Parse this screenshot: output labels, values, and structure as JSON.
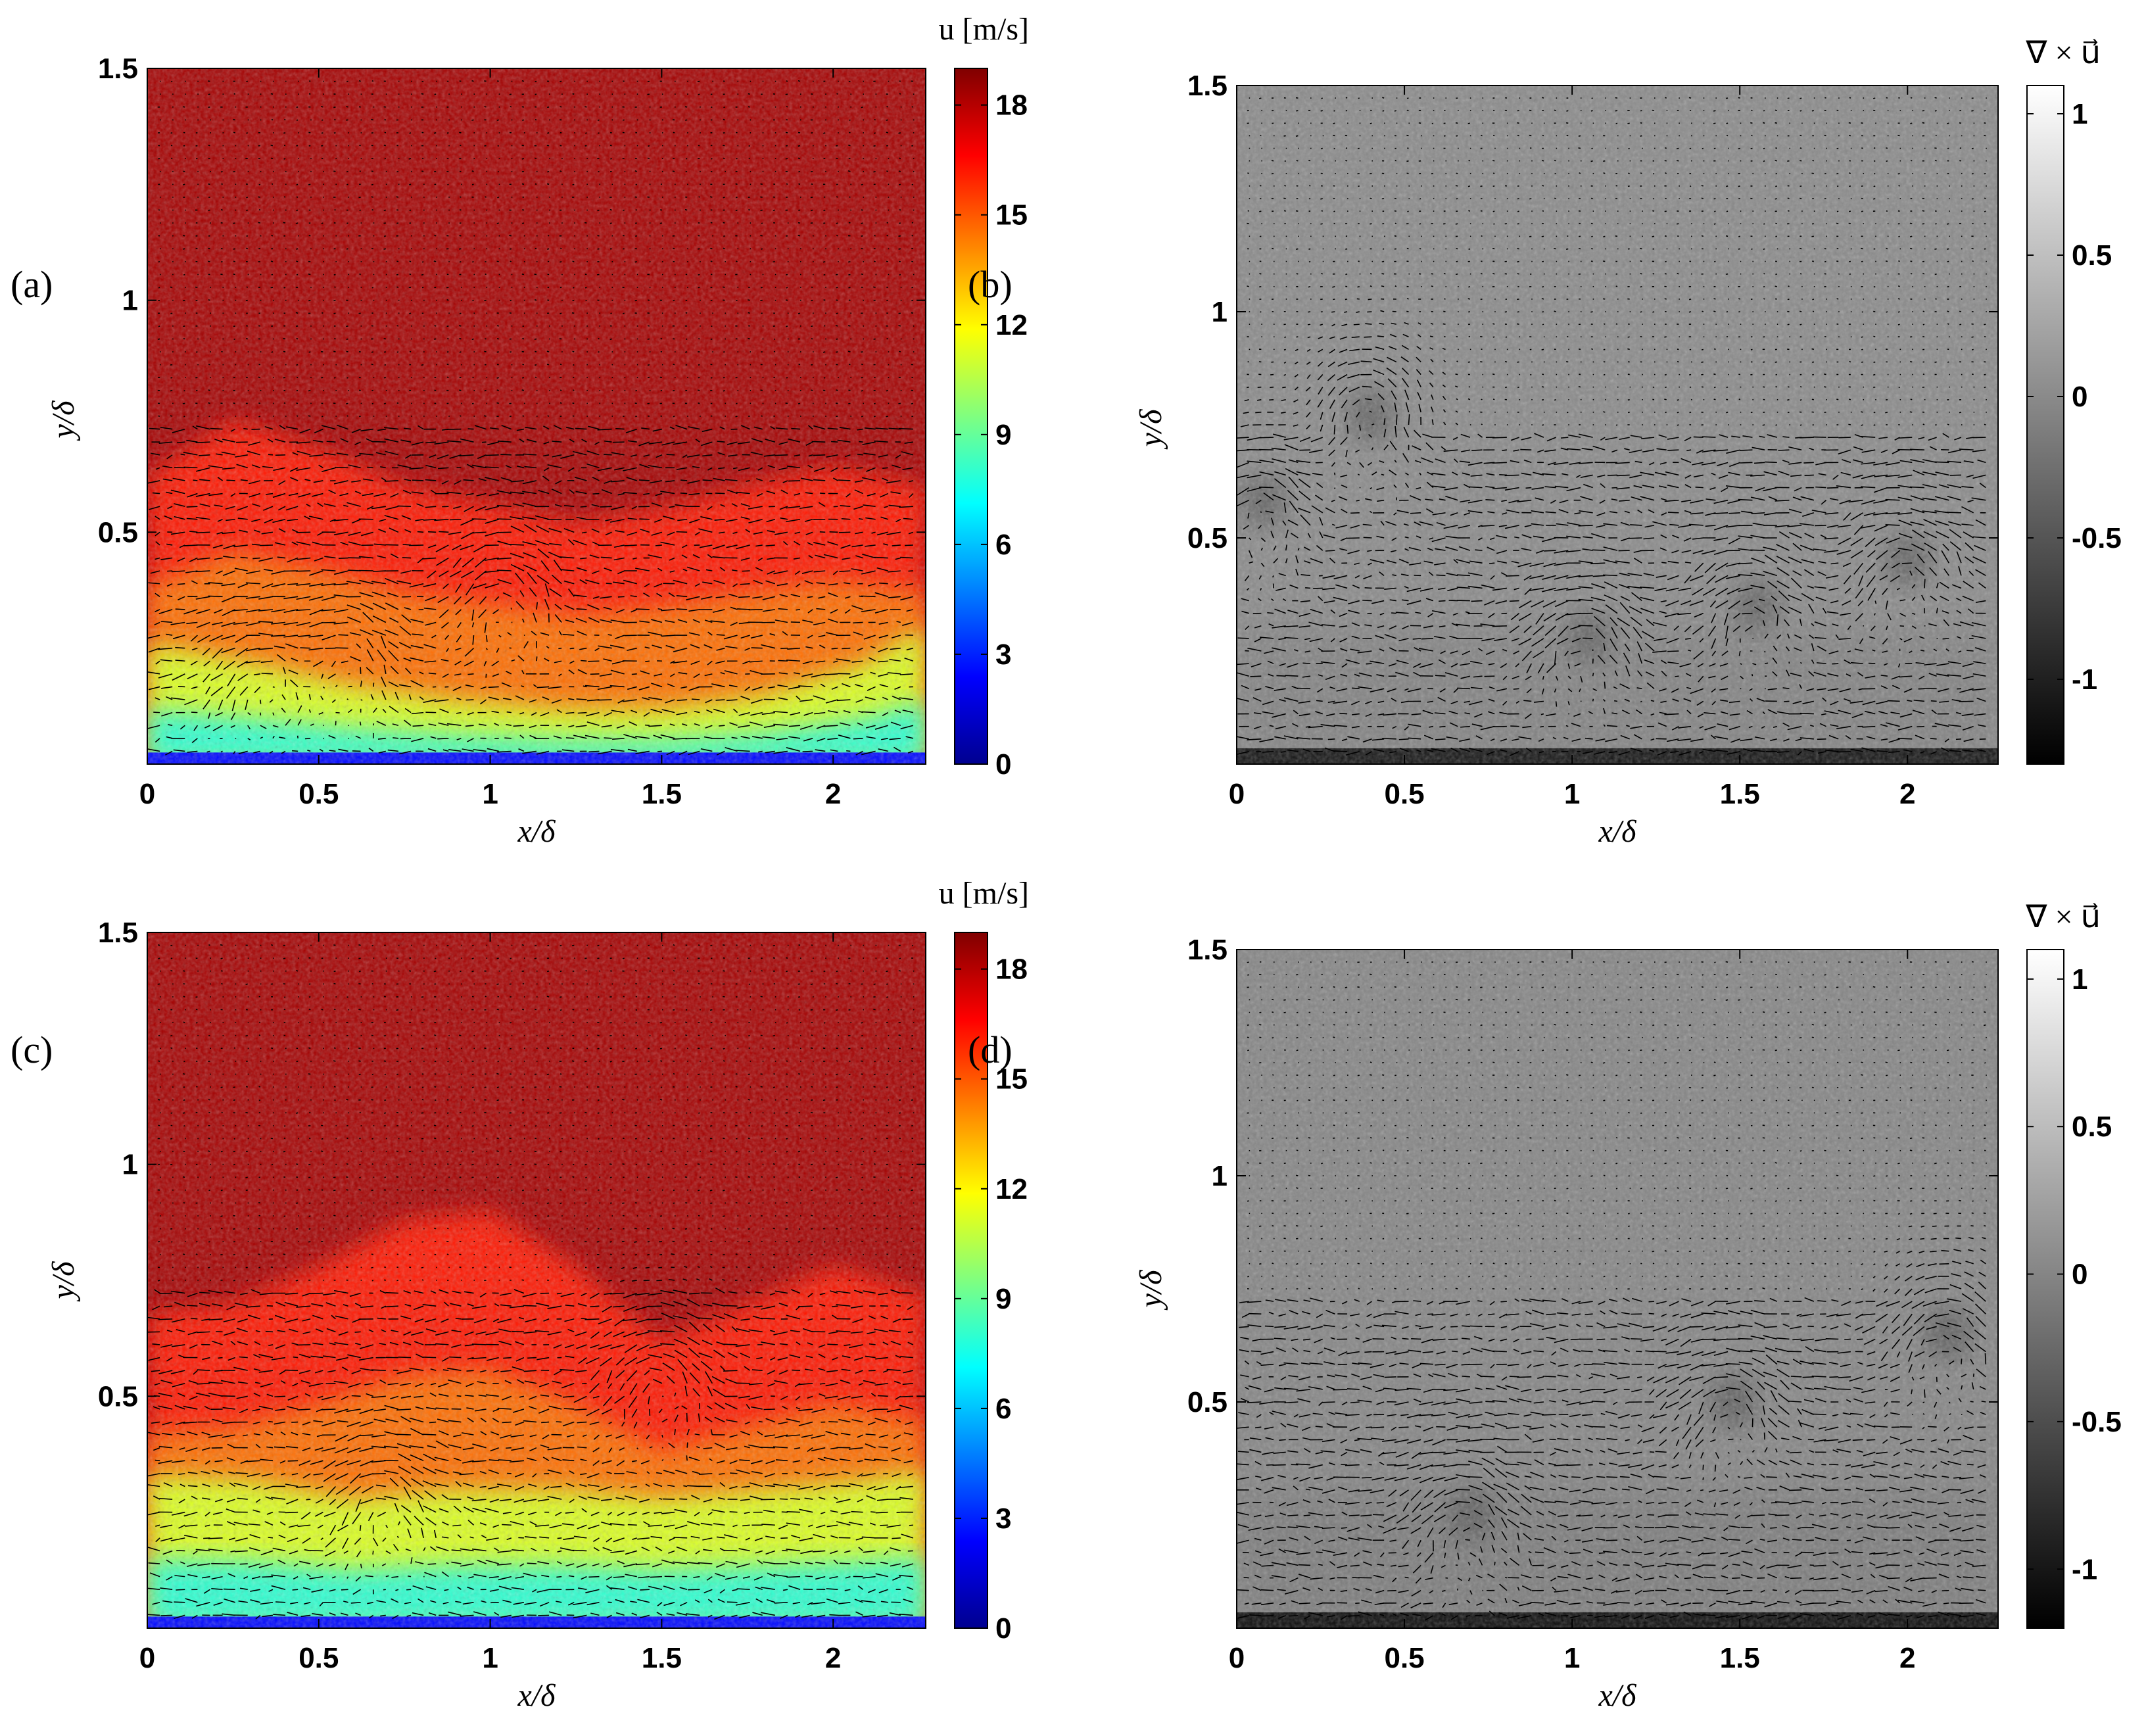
{
  "chart_data": [
    {
      "type": "heatmap",
      "panel_label": "(a)",
      "quantity": "u",
      "colorbar_label": "u [m/s]",
      "colormap": "jet",
      "xlabel": "x/δ",
      "ylabel": "y/δ",
      "xlim": [
        0,
        2.27
      ],
      "ylim": [
        0,
        1.5
      ],
      "xticks": [
        0,
        0.5,
        1,
        1.5,
        2
      ],
      "xtick_labels": [
        "0",
        "0.5",
        "1",
        "1.5",
        "2"
      ],
      "yticks": [
        0.5,
        1,
        1.5
      ],
      "ytick_labels": [
        "0.5",
        "1",
        "1.5"
      ],
      "clim": [
        0,
        19
      ],
      "cticks": [
        0,
        3,
        6,
        9,
        12,
        15,
        18
      ],
      "ctick_labels": [
        "0",
        "3",
        "6",
        "9",
        "12",
        "15",
        "18"
      ],
      "vector_overlay": true,
      "interface_profile": [
        [
          0,
          0.62
        ],
        [
          0.25,
          0.74
        ],
        [
          0.5,
          0.68
        ],
        [
          0.75,
          0.6
        ],
        [
          1.0,
          0.56
        ],
        [
          1.25,
          0.52
        ],
        [
          1.5,
          0.55
        ],
        [
          1.75,
          0.6
        ],
        [
          2.0,
          0.64
        ],
        [
          2.27,
          0.6
        ]
      ],
      "low_speed_profile": [
        [
          0,
          0.26
        ],
        [
          0.3,
          0.22
        ],
        [
          0.6,
          0.17
        ],
        [
          0.9,
          0.14
        ],
        [
          1.2,
          0.12
        ],
        [
          1.5,
          0.12
        ],
        [
          1.8,
          0.15
        ],
        [
          2.1,
          0.22
        ],
        [
          2.27,
          0.3
        ]
      ],
      "vortices": [
        [
          1.05,
          0.38
        ],
        [
          0.35,
          0.2
        ],
        [
          0.6,
          0.25
        ]
      ]
    },
    {
      "type": "heatmap",
      "panel_label": "(b)",
      "quantity": "vorticity",
      "colorbar_label": "∇ × u⃗",
      "colormap": "gray",
      "xlabel": "x/δ",
      "ylabel": "y/δ",
      "xlim": [
        0,
        2.27
      ],
      "ylim": [
        0,
        1.5
      ],
      "xticks": [
        0,
        0.5,
        1,
        1.5,
        2
      ],
      "xtick_labels": [
        "0",
        "0.5",
        "1",
        "1.5",
        "2"
      ],
      "yticks": [
        0.5,
        1,
        1.5
      ],
      "ytick_labels": [
        "0.5",
        "1",
        "1.5"
      ],
      "clim": [
        -1.3,
        1.1
      ],
      "cticks": [
        -1,
        -0.5,
        0,
        0.5,
        1
      ],
      "ctick_labels": [
        "-1",
        "-0.5",
        "0",
        "0.5",
        "1"
      ],
      "vector_overlay": true,
      "vortices": [
        [
          0.08,
          0.58
        ],
        [
          0.4,
          0.77
        ],
        [
          1.05,
          0.28
        ],
        [
          1.55,
          0.35
        ],
        [
          2.0,
          0.45
        ]
      ]
    },
    {
      "type": "heatmap",
      "panel_label": "(c)",
      "quantity": "u",
      "colorbar_label": "u [m/s]",
      "colormap": "jet",
      "xlabel": "x/δ",
      "ylabel": "y/δ",
      "xlim": [
        0,
        2.27
      ],
      "ylim": [
        0,
        1.5
      ],
      "xticks": [
        0,
        0.5,
        1,
        1.5,
        2
      ],
      "xtick_labels": [
        "0",
        "0.5",
        "1",
        "1.5",
        "2"
      ],
      "yticks": [
        0.5,
        1,
        1.5
      ],
      "ytick_labels": [
        "0.5",
        "1",
        "1.5"
      ],
      "clim": [
        0,
        19
      ],
      "cticks": [
        0,
        3,
        6,
        9,
        12,
        15,
        18
      ],
      "ctick_labels": [
        "0",
        "3",
        "6",
        "9",
        "12",
        "15",
        "18"
      ],
      "vector_overlay": true,
      "interface_profile": [
        [
          0,
          0.68
        ],
        [
          0.25,
          0.7
        ],
        [
          0.5,
          0.78
        ],
        [
          0.75,
          0.88
        ],
        [
          1.0,
          0.9
        ],
        [
          1.25,
          0.78
        ],
        [
          1.5,
          0.62
        ],
        [
          1.75,
          0.7
        ],
        [
          2.0,
          0.78
        ],
        [
          2.27,
          0.72
        ]
      ],
      "low_speed_profile": [
        [
          0,
          0.33
        ],
        [
          0.3,
          0.32
        ],
        [
          0.6,
          0.28
        ],
        [
          0.9,
          0.3
        ],
        [
          1.2,
          0.3
        ],
        [
          1.5,
          0.28
        ],
        [
          1.8,
          0.3
        ],
        [
          2.1,
          0.32
        ],
        [
          2.27,
          0.34
        ]
      ],
      "vortices": [
        [
          1.5,
          0.55
        ],
        [
          0.7,
          0.28
        ]
      ]
    },
    {
      "type": "heatmap",
      "panel_label": "(d)",
      "quantity": "vorticity",
      "colorbar_label": "∇ × u⃗",
      "colormap": "gray",
      "xlabel": "x/δ",
      "ylabel": "y/δ",
      "xlim": [
        0,
        2.27
      ],
      "ylim": [
        0,
        1.5
      ],
      "xticks": [
        0,
        0.5,
        1,
        1.5,
        2
      ],
      "xtick_labels": [
        "0",
        "0.5",
        "1",
        "1.5",
        "2"
      ],
      "yticks": [
        0.5,
        1,
        1.5
      ],
      "ytick_labels": [
        "0.5",
        "1",
        "1.5"
      ],
      "clim": [
        -1.2,
        1.1
      ],
      "cticks": [
        -1,
        -0.5,
        0,
        0.5,
        1
      ],
      "ctick_labels": [
        "-1",
        "-0.5",
        "0",
        "0.5",
        "1"
      ],
      "vector_overlay": true,
      "vortices": [
        [
          1.48,
          0.5
        ],
        [
          2.12,
          0.65
        ],
        [
          0.7,
          0.25
        ]
      ]
    }
  ]
}
